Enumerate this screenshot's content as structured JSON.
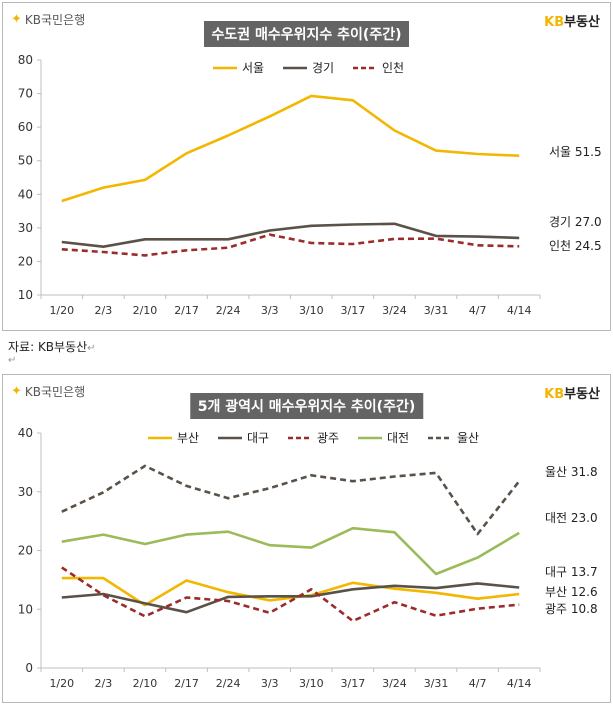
{
  "source_text": "자료: KB부동산",
  "return_mark": "↵",
  "logo_text": "KB국민은행",
  "brand_kb": "KB",
  "brand_rest": "부동산",
  "colors": {
    "yellow": "#f2b700",
    "dark": "#5a5248",
    "red": "#9c2b2b",
    "green": "#9bbb59"
  },
  "chart_data": [
    {
      "type": "line",
      "title": "수도권 매수우위지수 추이(주간)",
      "categories": [
        "1/20",
        "2/3",
        "2/10",
        "2/17",
        "2/24",
        "3/3",
        "3/10",
        "3/17",
        "3/24",
        "3/31",
        "4/7",
        "4/14"
      ],
      "ylim": [
        10,
        80
      ],
      "yticks": [
        10,
        20,
        30,
        40,
        50,
        60,
        70,
        80
      ],
      "legend_position": "top",
      "series": [
        {
          "name": "서울",
          "color": "#f2b700",
          "dash": "",
          "values": [
            38,
            42,
            44.3,
            52.2,
            57.5,
            63.2,
            69.3,
            68,
            59,
            53,
            52,
            51.5
          ],
          "end_label": "서울",
          "end_value": "51.5"
        },
        {
          "name": "경기",
          "color": "#5a5248",
          "dash": "",
          "values": [
            25.8,
            24.4,
            26.6,
            26.6,
            26.6,
            29.2,
            30.6,
            31,
            31.2,
            27.6,
            27.4,
            27.0
          ],
          "end_label": "경기",
          "end_value": "27.0"
        },
        {
          "name": "인천",
          "color": "#9c2b2b",
          "dash": "6,4",
          "values": [
            23.6,
            22.8,
            21.8,
            23.3,
            24.1,
            28,
            25.5,
            25.2,
            26.7,
            26.8,
            24.8,
            24.5
          ],
          "end_label": "인천",
          "end_value": "24.5"
        }
      ]
    },
    {
      "type": "line",
      "title": "5개 광역시 매수우위지수 추이(주간)",
      "categories": [
        "1/20",
        "2/3",
        "2/10",
        "2/17",
        "2/24",
        "3/3",
        "3/10",
        "3/17",
        "3/24",
        "3/31",
        "4/7",
        "4/14"
      ],
      "ylim": [
        0,
        40
      ],
      "yticks": [
        0,
        10,
        20,
        30,
        40
      ],
      "legend_position": "top",
      "series": [
        {
          "name": "부산",
          "color": "#f2b700",
          "dash": "",
          "values": [
            15.3,
            15.3,
            10.7,
            14.9,
            12.9,
            11.5,
            12.4,
            14.5,
            13.5,
            12.8,
            11.8,
            12.6
          ],
          "end_label": "부산",
          "end_value": "12.6"
        },
        {
          "name": "대구",
          "color": "#5a5248",
          "dash": "",
          "values": [
            12,
            12.6,
            11,
            9.5,
            12.1,
            12.2,
            12.2,
            13.4,
            14,
            13.6,
            14.4,
            13.7
          ],
          "end_label": "대구",
          "end_value": "13.7"
        },
        {
          "name": "광주",
          "color": "#9c2b2b",
          "dash": "6,4",
          "values": [
            17.1,
            12.4,
            8.8,
            12,
            11.4,
            9.4,
            13.4,
            8,
            11.2,
            8.9,
            10.1,
            10.8
          ],
          "end_label": "광주",
          "end_value": "10.8"
        },
        {
          "name": "대전",
          "color": "#9bbb59",
          "dash": "",
          "values": [
            21.5,
            22.7,
            21.1,
            22.7,
            23.2,
            20.9,
            20.5,
            23.8,
            23.1,
            16,
            18.8,
            23.0
          ],
          "end_label": "대전",
          "end_value": "23.0"
        },
        {
          "name": "울산",
          "color": "#5a5248",
          "dash": "6,4",
          "values": [
            26.6,
            29.9,
            34.4,
            31,
            28.9,
            30.6,
            32.8,
            31.8,
            32.6,
            33.2,
            22.8,
            31.8
          ],
          "end_label": "울산",
          "end_value": "31.8"
        }
      ]
    }
  ]
}
